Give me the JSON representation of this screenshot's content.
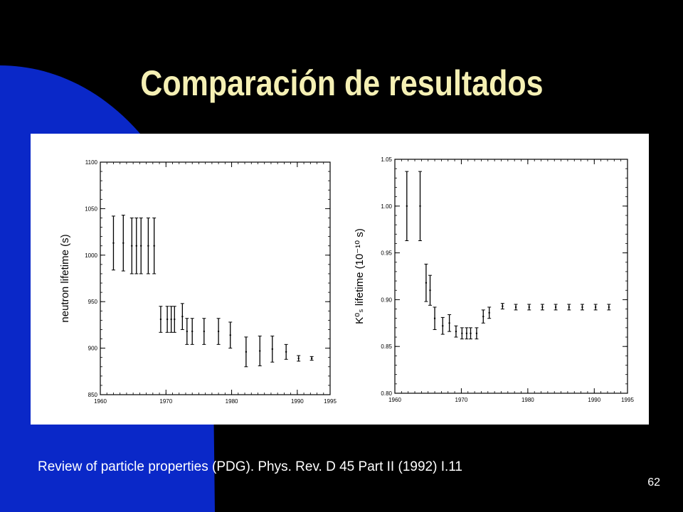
{
  "slide": {
    "title": "Comparación de resultados",
    "citation": "Review of particle properties (PDG). Phys. Rev. D 45 Part II (1992) I.11",
    "page_number": "62",
    "colors": {
      "background": "#000000",
      "accent_shape": "#0a28c8",
      "title": "#f5f0b4",
      "text": "#ffffff"
    }
  },
  "chart_data": [
    {
      "type": "scatter",
      "title": "",
      "xlabel": "",
      "ylabel": "neutron lifetime (s)",
      "xlim": [
        1960,
        1995
      ],
      "ylim": [
        850,
        1100
      ],
      "xticks": [
        "1960",
        "1970",
        "1980",
        "1990",
        "1995"
      ],
      "yticks": [
        "850",
        "900",
        "950",
        "1000",
        "1050",
        "1100"
      ],
      "grid": false,
      "points": [
        {
          "x": 1962,
          "y": 1013,
          "err": 29
        },
        {
          "x": 1963.5,
          "y": 1013,
          "err": 30
        },
        {
          "x": 1964.8,
          "y": 1010,
          "err": 30
        },
        {
          "x": 1965.5,
          "y": 1010,
          "err": 30
        },
        {
          "x": 1966.2,
          "y": 1010,
          "err": 30
        },
        {
          "x": 1967.3,
          "y": 1010,
          "err": 30
        },
        {
          "x": 1968.2,
          "y": 1010,
          "err": 30
        },
        {
          "x": 1969.2,
          "y": 931,
          "err": 14
        },
        {
          "x": 1970.2,
          "y": 931,
          "err": 14
        },
        {
          "x": 1970.8,
          "y": 931,
          "err": 14
        },
        {
          "x": 1971.3,
          "y": 931,
          "err": 14
        },
        {
          "x": 1972.5,
          "y": 934,
          "err": 14
        },
        {
          "x": 1973.2,
          "y": 918,
          "err": 14
        },
        {
          "x": 1974,
          "y": 918,
          "err": 14
        },
        {
          "x": 1975.8,
          "y": 918,
          "err": 14
        },
        {
          "x": 1978,
          "y": 918,
          "err": 14
        },
        {
          "x": 1979.8,
          "y": 914,
          "err": 14
        },
        {
          "x": 1982.2,
          "y": 896,
          "err": 16
        },
        {
          "x": 1984.3,
          "y": 897,
          "err": 16
        },
        {
          "x": 1986.2,
          "y": 899,
          "err": 14
        },
        {
          "x": 1988.3,
          "y": 896,
          "err": 8
        },
        {
          "x": 1990.2,
          "y": 889,
          "err": 3
        },
        {
          "x": 1992.2,
          "y": 889,
          "err": 2
        }
      ]
    },
    {
      "type": "scatter",
      "title": "",
      "xlabel": "",
      "ylabel": "K⁰ₛ lifetime (10⁻¹⁰ s)",
      "xlim": [
        1960,
        1995
      ],
      "ylim": [
        0.8,
        1.05
      ],
      "xticks": [
        "1960",
        "1970",
        "1980",
        "1990",
        "1995"
      ],
      "yticks": [
        "0.80",
        "0.85",
        "0.90",
        "0.95",
        "1.00",
        "1.05"
      ],
      "grid": false,
      "points": [
        {
          "x": 1961.8,
          "y": 1.0,
          "err": 0.037
        },
        {
          "x": 1963.8,
          "y": 1.0,
          "err": 0.037
        },
        {
          "x": 1964.7,
          "y": 0.918,
          "err": 0.02
        },
        {
          "x": 1965.3,
          "y": 0.91,
          "err": 0.016
        },
        {
          "x": 1966,
          "y": 0.88,
          "err": 0.012
        },
        {
          "x": 1967.2,
          "y": 0.872,
          "err": 0.009
        },
        {
          "x": 1968.2,
          "y": 0.875,
          "err": 0.009
        },
        {
          "x": 1969.2,
          "y": 0.866,
          "err": 0.006
        },
        {
          "x": 1970.1,
          "y": 0.864,
          "err": 0.006
        },
        {
          "x": 1970.8,
          "y": 0.864,
          "err": 0.006
        },
        {
          "x": 1971.4,
          "y": 0.864,
          "err": 0.006
        },
        {
          "x": 1972.3,
          "y": 0.864,
          "err": 0.006
        },
        {
          "x": 1973.3,
          "y": 0.882,
          "err": 0.007
        },
        {
          "x": 1974.2,
          "y": 0.886,
          "err": 0.006
        },
        {
          "x": 1976.2,
          "y": 0.893,
          "err": 0.003
        },
        {
          "x": 1978.2,
          "y": 0.892,
          "err": 0.003
        },
        {
          "x": 1980.2,
          "y": 0.892,
          "err": 0.003
        },
        {
          "x": 1982.2,
          "y": 0.892,
          "err": 0.003
        },
        {
          "x": 1984.2,
          "y": 0.892,
          "err": 0.003
        },
        {
          "x": 1986.2,
          "y": 0.892,
          "err": 0.003
        },
        {
          "x": 1988.2,
          "y": 0.892,
          "err": 0.003
        },
        {
          "x": 1990.2,
          "y": 0.892,
          "err": 0.003
        },
        {
          "x": 1992.2,
          "y": 0.892,
          "err": 0.003
        }
      ]
    }
  ]
}
